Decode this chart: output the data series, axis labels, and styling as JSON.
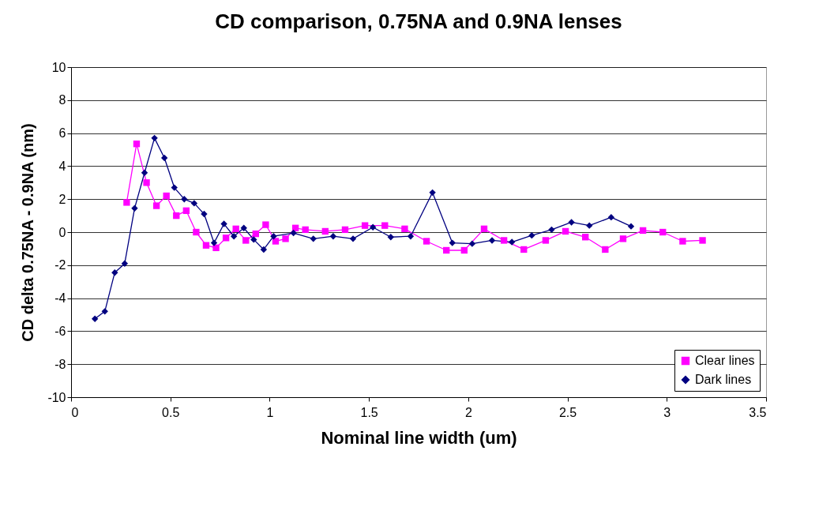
{
  "chart_data": {
    "type": "line",
    "title": "CD comparison, 0.75NA and 0.9NA lenses",
    "xlabel": "Nominal line width (um)",
    "ylabel": "CD delta 0.75NA - 0.9NA (nm)",
    "xlim": [
      0,
      3.5
    ],
    "xticks": [
      0,
      0.5,
      1,
      1.5,
      2,
      2.5,
      3,
      3.5
    ],
    "ylim": [
      -10,
      10
    ],
    "yticks": [
      -10,
      -8,
      -6,
      -4,
      -2,
      0,
      2,
      4,
      6,
      8,
      10
    ],
    "grid": "y",
    "legend": "bottom right",
    "series": [
      {
        "name": "Clear lines",
        "color": "#ff00ff",
        "marker": "square",
        "x": [
          0.28,
          0.33,
          0.38,
          0.43,
          0.48,
          0.53,
          0.58,
          0.63,
          0.68,
          0.73,
          0.78,
          0.83,
          0.88,
          0.93,
          0.98,
          1.03,
          1.08,
          1.13,
          1.18,
          1.28,
          1.38,
          1.48,
          1.58,
          1.68,
          1.79,
          1.89,
          1.98,
          2.08,
          2.18,
          2.28,
          2.39,
          2.49,
          2.59,
          2.69,
          2.78,
          2.88,
          2.98,
          3.08,
          3.18
        ],
        "values": [
          1.8,
          5.35,
          3.0,
          1.6,
          2.2,
          1.0,
          1.3,
          0.0,
          -0.8,
          -0.95,
          -0.35,
          0.2,
          -0.5,
          -0.1,
          0.45,
          -0.55,
          -0.4,
          0.25,
          0.15,
          0.05,
          0.15,
          0.4,
          0.4,
          0.2,
          -0.55,
          -1.1,
          -1.1,
          0.2,
          -0.5,
          -1.05,
          -0.5,
          0.05,
          -0.3,
          -1.05,
          -0.4,
          0.1,
          0.0,
          -0.55,
          -0.5
        ]
      },
      {
        "name": "Dark lines",
        "color": "#000080",
        "marker": "diamond",
        "x": [
          0.12,
          0.17,
          0.22,
          0.27,
          0.32,
          0.37,
          0.42,
          0.47,
          0.52,
          0.57,
          0.62,
          0.67,
          0.72,
          0.77,
          0.82,
          0.87,
          0.92,
          0.97,
          1.02,
          1.12,
          1.22,
          1.32,
          1.42,
          1.52,
          1.61,
          1.71,
          1.82,
          1.92,
          2.02,
          2.12,
          2.22,
          2.32,
          2.42,
          2.52,
          2.61,
          2.72,
          2.82
        ],
        "values": [
          -5.25,
          -4.8,
          -2.45,
          -1.9,
          1.45,
          3.6,
          5.7,
          4.5,
          2.7,
          2.0,
          1.75,
          1.1,
          -0.65,
          0.5,
          -0.25,
          0.25,
          -0.45,
          -1.05,
          -0.25,
          -0.05,
          -0.4,
          -0.25,
          -0.4,
          0.3,
          -0.3,
          -0.25,
          2.4,
          -0.65,
          -0.7,
          -0.5,
          -0.6,
          -0.2,
          0.15,
          0.6,
          0.4,
          0.9,
          0.35
        ]
      }
    ]
  }
}
